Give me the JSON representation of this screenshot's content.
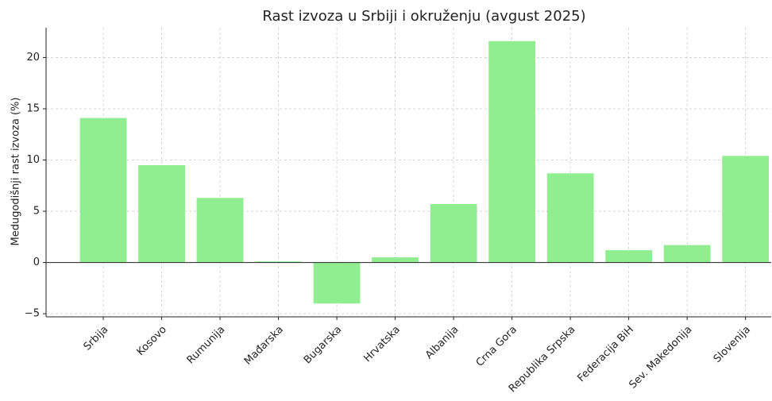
{
  "chart_data": {
    "type": "bar",
    "title": "Rast izvoza u Srbiji i okruženju (avgust 2025)",
    "ylabel": "Medugodišnji rast izvoza (%)",
    "categories": [
      "Srbija",
      "Kosovo",
      "Rumunija",
      "Mađarska",
      "Bugarska",
      "Hrvatska",
      "Albanija",
      "Crna Gora",
      "Republika Srpska",
      "Federacija BiH",
      "Sev. Makedonija",
      "Slovenija"
    ],
    "values": [
      14.1,
      9.5,
      6.3,
      0.1,
      -4.0,
      0.5,
      5.7,
      21.6,
      8.7,
      1.2,
      1.7,
      10.4
    ],
    "color": "#90ee90",
    "ylim": [
      -5.3,
      22.9
    ],
    "yticks": [
      {
        "value": -5,
        "label": "−5"
      },
      0,
      5,
      10,
      15,
      20
    ],
    "grid": true
  }
}
